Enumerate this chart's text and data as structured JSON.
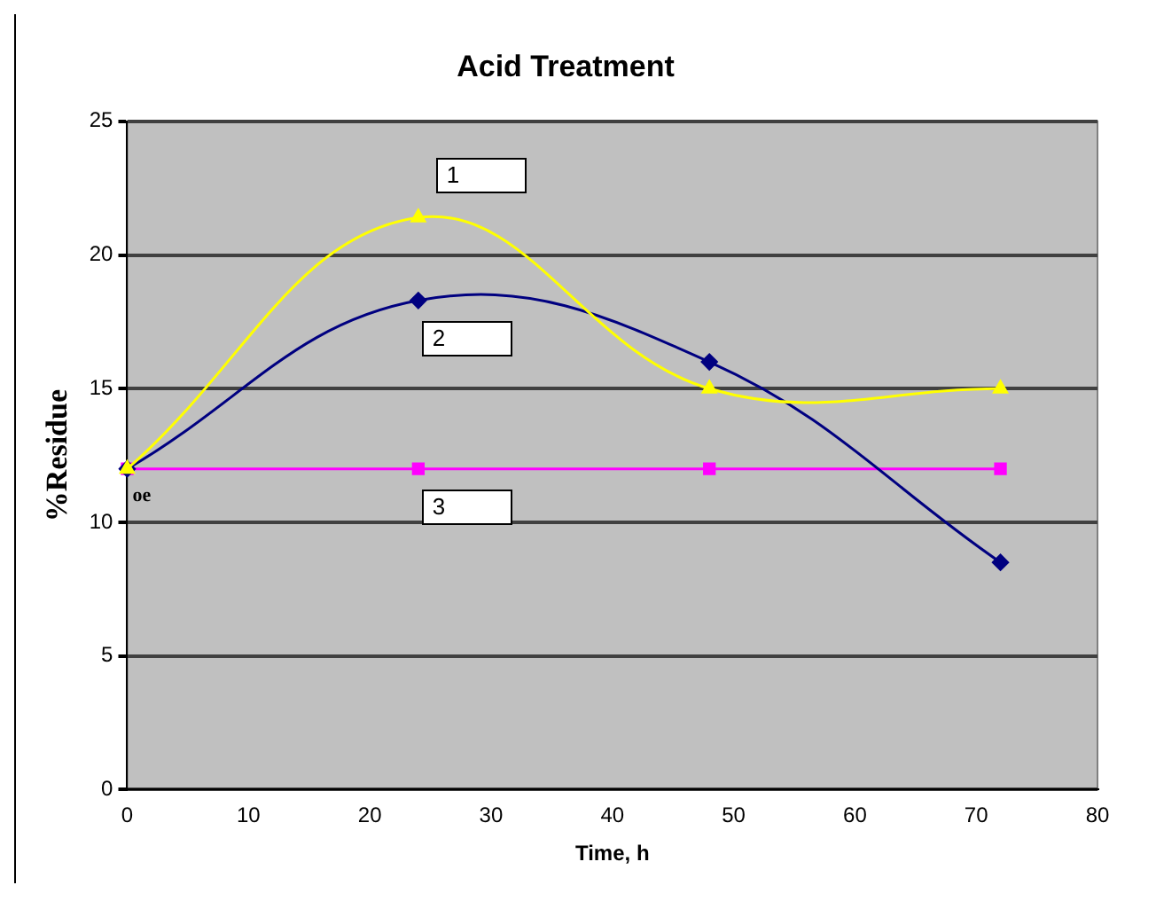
{
  "chart_data": {
    "type": "line",
    "title": "Acid Treatment",
    "xlabel": "Time, h",
    "ylabel": "%Residue",
    "x": [
      0,
      24,
      48,
      72
    ],
    "series": [
      {
        "name": "1",
        "color": "#ffff00",
        "marker": "triangle",
        "values": [
          12,
          21.4,
          15,
          15
        ]
      },
      {
        "name": "2",
        "color": "#000080",
        "marker": "diamond",
        "values": [
          12,
          18.3,
          16,
          8.5
        ]
      },
      {
        "name": "3",
        "color": "#ff00ff",
        "marker": "square",
        "values": [
          12,
          12,
          12,
          12
        ]
      }
    ],
    "annotations": [
      "oe"
    ],
    "xlim": [
      0,
      80
    ],
    "xticks": [
      0,
      10,
      20,
      30,
      40,
      50,
      60,
      70,
      80
    ],
    "ylim": [
      0,
      25
    ],
    "yticks": [
      0,
      5,
      10,
      15,
      20,
      25
    ],
    "grid": "y",
    "legend": false,
    "line_style": "solid"
  }
}
